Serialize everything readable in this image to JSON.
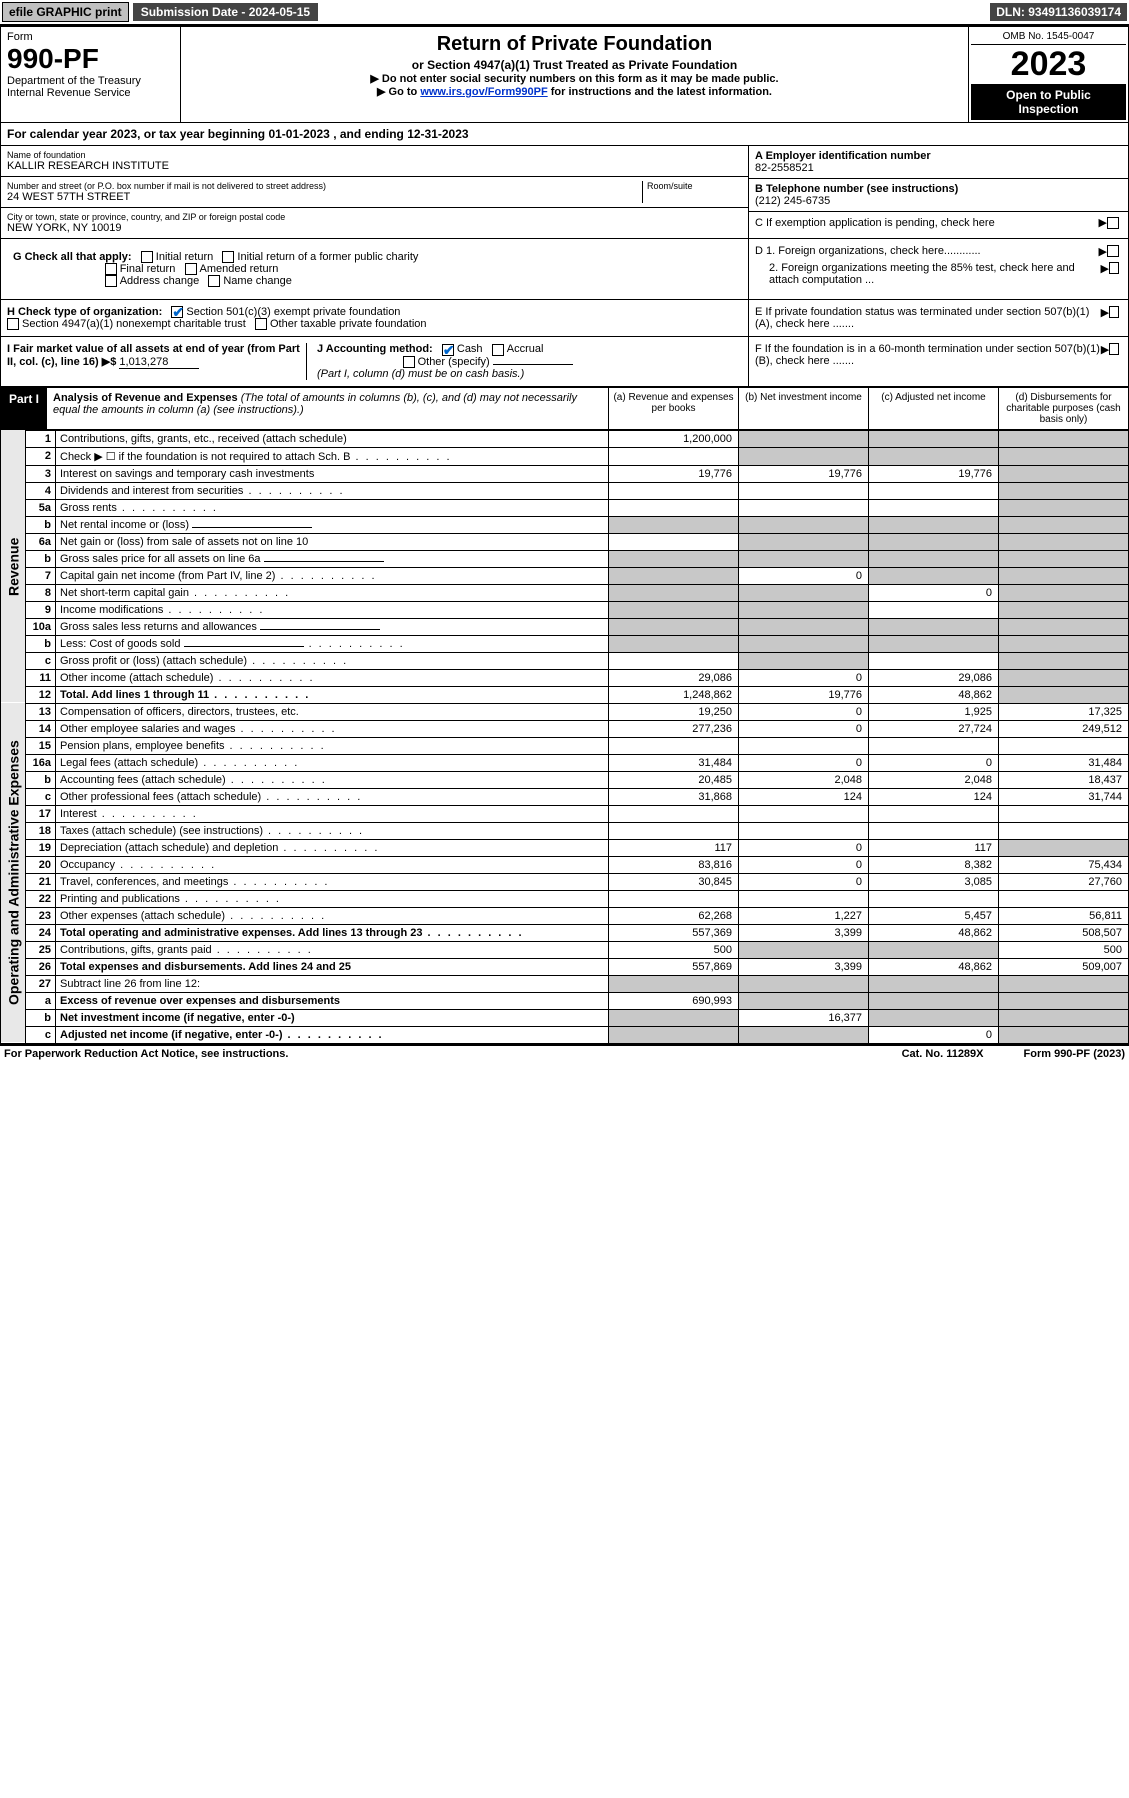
{
  "topbar": {
    "efile": "efile GRAPHIC print",
    "submission": "Submission Date - 2024-05-15",
    "dln": "DLN: 93491136039174"
  },
  "header": {
    "form_word": "Form",
    "form_no": "990-PF",
    "dept": "Department of the Treasury",
    "irs": "Internal Revenue Service",
    "title": "Return of Private Foundation",
    "subtitle": "or Section 4947(a)(1) Trust Treated as Private Foundation",
    "note1": "▶ Do not enter social security numbers on this form as it may be made public.",
    "note2_pre": "▶ Go to ",
    "note2_link": "www.irs.gov/Form990PF",
    "note2_post": " for instructions and the latest information.",
    "omb": "OMB No. 1545-0047",
    "year": "2023",
    "open": "Open to Public Inspection"
  },
  "calyear": {
    "pre": "For calendar year 2023, or tax year beginning ",
    "begin": "01-01-2023",
    "mid": " , and ending ",
    "end": "12-31-2023"
  },
  "entity": {
    "name_label": "Name of foundation",
    "name": "KALLIR RESEARCH INSTITUTE",
    "addr_label": "Number and street (or P.O. box number if mail is not delivered to street address)",
    "room_label": "Room/suite",
    "addr": "24 WEST 57TH STREET",
    "city_label": "City or town, state or province, country, and ZIP or foreign postal code",
    "city": "NEW YORK, NY  10019",
    "a_label": "A Employer identification number",
    "ein": "82-2558521",
    "b_label": "B Telephone number (see instructions)",
    "phone": "(212) 245-6735",
    "c_label": "C If exemption application is pending, check here"
  },
  "checks": {
    "g_label": "G Check all that apply:",
    "g1": "Initial return",
    "g2": "Initial return of a former public charity",
    "g3": "Final return",
    "g4": "Amended return",
    "g5": "Address change",
    "g6": "Name change",
    "h_label": "H Check type of organization:",
    "h1": "Section 501(c)(3) exempt private foundation",
    "h2": "Section 4947(a)(1) nonexempt charitable trust",
    "h3": "Other taxable private foundation",
    "i_label": "I Fair market value of all assets at end of year (from Part II, col. (c), line 16) ▶$",
    "i_val": "1,013,278",
    "j_label": "J Accounting method:",
    "j1": "Cash",
    "j2": "Accrual",
    "j3": "Other (specify)",
    "j_note": "(Part I, column (d) must be on cash basis.)",
    "d1": "D 1. Foreign organizations, check here............",
    "d2": "2. Foreign organizations meeting the 85% test, check here and attach computation ...",
    "e": "E  If private foundation status was terminated under section 507(b)(1)(A), check here .......",
    "f": "F  If the foundation is in a 60-month termination under section 507(b)(1)(B), check here .......",
    "arrow": "▶"
  },
  "part1": {
    "label": "Part I",
    "title": "Analysis of Revenue and Expenses",
    "note": " (The total of amounts in columns (b), (c), and (d) may not necessarily equal the amounts in column (a) (see instructions).)",
    "col_a": "(a)   Revenue and expenses per books",
    "col_b": "(b)   Net investment income",
    "col_c": "(c)   Adjusted net income",
    "col_d": "(d)   Disbursements for charitable purposes (cash basis only)"
  },
  "sidelabels": {
    "rev": "Revenue",
    "op": "Operating and Administrative Expenses"
  },
  "rows": [
    {
      "ln": "1",
      "desc": "Contributions, gifts, grants, etc., received (attach schedule)",
      "a": "1,200,000",
      "b": "",
      "c": "",
      "d": "",
      "bs": true,
      "cs": true,
      "ds": true
    },
    {
      "ln": "2",
      "desc": "Check ▶ ☐ if the foundation is not required to attach Sch. B",
      "dots": true,
      "a": "",
      "b": "",
      "c": "",
      "d": "",
      "bs": true,
      "cs": true,
      "ds": true
    },
    {
      "ln": "3",
      "desc": "Interest on savings and temporary cash investments",
      "a": "19,776",
      "b": "19,776",
      "c": "19,776",
      "d": "",
      "ds": true
    },
    {
      "ln": "4",
      "desc": "Dividends and interest from securities",
      "dots": true,
      "a": "",
      "b": "",
      "c": "",
      "d": "",
      "ds": true
    },
    {
      "ln": "5a",
      "desc": "Gross rents",
      "dots": true,
      "a": "",
      "b": "",
      "c": "",
      "d": "",
      "ds": true
    },
    {
      "ln": "b",
      "desc": "Net rental income or (loss)",
      "inline": true,
      "a": "",
      "b": "",
      "c": "",
      "d": "",
      "as": true,
      "bs": true,
      "cs": true,
      "ds": true
    },
    {
      "ln": "6a",
      "desc": "Net gain or (loss) from sale of assets not on line 10",
      "a": "",
      "b": "",
      "c": "",
      "d": "",
      "bs": true,
      "cs": true,
      "ds": true
    },
    {
      "ln": "b",
      "desc": "Gross sales price for all assets on line 6a",
      "inline": true,
      "a": "",
      "b": "",
      "c": "",
      "d": "",
      "as": true,
      "bs": true,
      "cs": true,
      "ds": true
    },
    {
      "ln": "7",
      "desc": "Capital gain net income (from Part IV, line 2)",
      "dots": true,
      "a": "",
      "b": "0",
      "c": "",
      "d": "",
      "as": true,
      "cs": true,
      "ds": true
    },
    {
      "ln": "8",
      "desc": "Net short-term capital gain",
      "dots": true,
      "a": "",
      "b": "",
      "c": "0",
      "d": "",
      "as": true,
      "bs": true,
      "ds": true
    },
    {
      "ln": "9",
      "desc": "Income modifications",
      "dots": true,
      "a": "",
      "b": "",
      "c": "",
      "d": "",
      "as": true,
      "bs": true,
      "ds": true
    },
    {
      "ln": "10a",
      "desc": "Gross sales less returns and allowances",
      "inline": true,
      "a": "",
      "b": "",
      "c": "",
      "d": "",
      "as": true,
      "bs": true,
      "cs": true,
      "ds": true
    },
    {
      "ln": "b",
      "desc": "Less: Cost of goods sold",
      "dots": true,
      "inline": true,
      "a": "",
      "b": "",
      "c": "",
      "d": "",
      "as": true,
      "bs": true,
      "cs": true,
      "ds": true
    },
    {
      "ln": "c",
      "desc": "Gross profit or (loss) (attach schedule)",
      "dots": true,
      "a": "",
      "b": "",
      "c": "",
      "d": "",
      "bs": true,
      "ds": true
    },
    {
      "ln": "11",
      "desc": "Other income (attach schedule)",
      "dots": true,
      "a": "29,086",
      "b": "0",
      "c": "29,086",
      "d": "",
      "ds": true
    },
    {
      "ln": "12",
      "desc": "Total. Add lines 1 through 11",
      "bold": true,
      "dots": true,
      "a": "1,248,862",
      "b": "19,776",
      "c": "48,862",
      "d": "",
      "ds": true
    },
    {
      "ln": "13",
      "desc": "Compensation of officers, directors, trustees, etc.",
      "a": "19,250",
      "b": "0",
      "c": "1,925",
      "d": "17,325"
    },
    {
      "ln": "14",
      "desc": "Other employee salaries and wages",
      "dots": true,
      "a": "277,236",
      "b": "0",
      "c": "27,724",
      "d": "249,512"
    },
    {
      "ln": "15",
      "desc": "Pension plans, employee benefits",
      "dots": true,
      "a": "",
      "b": "",
      "c": "",
      "d": ""
    },
    {
      "ln": "16a",
      "desc": "Legal fees (attach schedule)",
      "dots": true,
      "a": "31,484",
      "b": "0",
      "c": "0",
      "d": "31,484"
    },
    {
      "ln": "b",
      "desc": "Accounting fees (attach schedule)",
      "dots": true,
      "a": "20,485",
      "b": "2,048",
      "c": "2,048",
      "d": "18,437"
    },
    {
      "ln": "c",
      "desc": "Other professional fees (attach schedule)",
      "dots": true,
      "a": "31,868",
      "b": "124",
      "c": "124",
      "d": "31,744"
    },
    {
      "ln": "17",
      "desc": "Interest",
      "dots": true,
      "a": "",
      "b": "",
      "c": "",
      "d": ""
    },
    {
      "ln": "18",
      "desc": "Taxes (attach schedule) (see instructions)",
      "dots": true,
      "a": "",
      "b": "",
      "c": "",
      "d": ""
    },
    {
      "ln": "19",
      "desc": "Depreciation (attach schedule) and depletion",
      "dots": true,
      "a": "117",
      "b": "0",
      "c": "117",
      "d": "",
      "ds": true
    },
    {
      "ln": "20",
      "desc": "Occupancy",
      "dots": true,
      "a": "83,816",
      "b": "0",
      "c": "8,382",
      "d": "75,434"
    },
    {
      "ln": "21",
      "desc": "Travel, conferences, and meetings",
      "dots": true,
      "a": "30,845",
      "b": "0",
      "c": "3,085",
      "d": "27,760"
    },
    {
      "ln": "22",
      "desc": "Printing and publications",
      "dots": true,
      "a": "",
      "b": "",
      "c": "",
      "d": ""
    },
    {
      "ln": "23",
      "desc": "Other expenses (attach schedule)",
      "dots": true,
      "a": "62,268",
      "b": "1,227",
      "c": "5,457",
      "d": "56,811"
    },
    {
      "ln": "24",
      "desc": "Total operating and administrative expenses. Add lines 13 through 23",
      "bold": true,
      "dots": true,
      "a": "557,369",
      "b": "3,399",
      "c": "48,862",
      "d": "508,507"
    },
    {
      "ln": "25",
      "desc": "Contributions, gifts, grants paid",
      "dots": true,
      "a": "500",
      "b": "",
      "c": "",
      "d": "500",
      "bs": true,
      "cs": true
    },
    {
      "ln": "26",
      "desc": "Total expenses and disbursements. Add lines 24 and 25",
      "bold": true,
      "a": "557,869",
      "b": "3,399",
      "c": "48,862",
      "d": "509,007"
    },
    {
      "ln": "27",
      "desc": "Subtract line 26 from line 12:",
      "a": "",
      "b": "",
      "c": "",
      "d": "",
      "as": true,
      "bs": true,
      "cs": true,
      "ds": true
    },
    {
      "ln": "a",
      "desc": "Excess of revenue over expenses and disbursements",
      "bold": true,
      "a": "690,993",
      "b": "",
      "c": "",
      "d": "",
      "bs": true,
      "cs": true,
      "ds": true
    },
    {
      "ln": "b",
      "desc": "Net investment income (if negative, enter -0-)",
      "bold": true,
      "a": "",
      "b": "16,377",
      "c": "",
      "d": "",
      "as": true,
      "cs": true,
      "ds": true
    },
    {
      "ln": "c",
      "desc": "Adjusted net income (if negative, enter -0-)",
      "bold": true,
      "dots": true,
      "a": "",
      "b": "",
      "c": "0",
      "d": "",
      "as": true,
      "bs": true,
      "ds": true
    }
  ],
  "footer": {
    "left": "For Paperwork Reduction Act Notice, see instructions.",
    "mid": "Cat. No. 11289X",
    "right": "Form 990-PF (2023)"
  }
}
